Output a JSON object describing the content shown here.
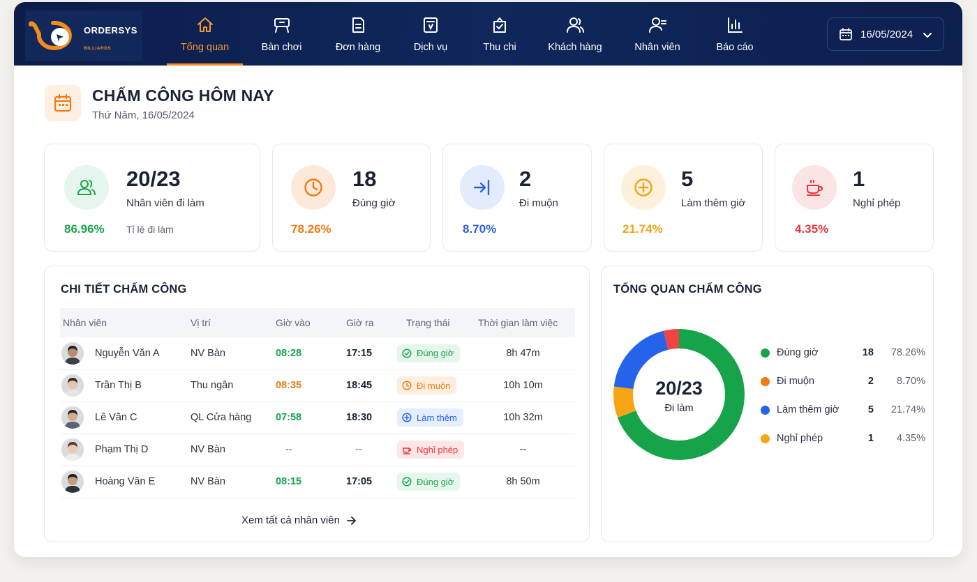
{
  "brand": {
    "name": "ORDERSYS",
    "sub": "BILLIARDS"
  },
  "nav": [
    {
      "label": "Tổng quan",
      "icon": "home-icon",
      "active": true
    },
    {
      "label": "Bàn chơi",
      "icon": "billiard-table-icon"
    },
    {
      "label": "Đơn hàng",
      "icon": "order-icon"
    },
    {
      "label": "Dịch vụ",
      "icon": "service-icon"
    },
    {
      "label": "Thu chi",
      "icon": "finance-icon"
    },
    {
      "label": "Khách hàng",
      "icon": "customers-icon"
    },
    {
      "label": "Nhân viên",
      "icon": "staff-icon"
    },
    {
      "label": "Báo cáo",
      "icon": "report-icon"
    }
  ],
  "date_picker": {
    "value": "16/05/2024"
  },
  "page": {
    "title": "CHẤM CÔNG HÔM NAY",
    "subtitle": "Thứ Năm, 16/05/2024"
  },
  "stats": [
    {
      "value": "20/23",
      "label": "Nhân viên đi làm",
      "percent": "86.96%",
      "note": "Tỉ lệ đi làm",
      "color": "#16a34a",
      "bg": "#e7f6ec"
    },
    {
      "value": "18",
      "label": "Đúng giờ",
      "percent": "78.26%",
      "color": "#f07a14",
      "bg": "#fde9d9"
    },
    {
      "value": "2",
      "label": "Đi muộn",
      "percent": "8.70%",
      "color": "#2e5fd8",
      "bg": "#e3ecfc"
    },
    {
      "value": "5",
      "label": "Làm thêm giờ",
      "percent": "21.74%",
      "color": "#f0a316",
      "bg": "#fdf1dc"
    },
    {
      "value": "1",
      "label": "Nghỉ phép",
      "percent": "4.35%",
      "color": "#e5383b",
      "bg": "#fde4e4"
    }
  ],
  "detail": {
    "title": "CHI TIẾT CHẤM CÔNG",
    "columns": [
      "Nhân viên",
      "Vị trí",
      "Giờ vào",
      "Giờ ra",
      "Trạng thái",
      "Thời gian làm việc"
    ],
    "rows": [
      {
        "name": "Nguyễn Văn A",
        "position": "NV Bàn",
        "in": "08:28",
        "out": "17:15",
        "status": "Đúng giờ",
        "duration": "8h 47m",
        "in_color": "#16a34a",
        "status_type": "ontime"
      },
      {
        "name": "Trần Thị B",
        "position": "Thu ngân",
        "in": "08:35",
        "out": "18:45",
        "status": "Đi muộn",
        "duration": "10h 10m",
        "in_color": "#f07a14",
        "status_type": "late"
      },
      {
        "name": "Lê Văn C",
        "position": "QL Cửa hàng",
        "in": "07:58",
        "out": "18:30",
        "status": "Làm thêm",
        "duration": "10h 32m",
        "in_color": "#16a34a",
        "status_type": "overtime"
      },
      {
        "name": "Phạm Thị D",
        "position": "NV Bàn",
        "in": "--",
        "out": "--",
        "status": "Nghỉ phép",
        "duration": "--",
        "in_color": "#5d6473",
        "status_type": "leave"
      },
      {
        "name": "Hoàng Văn E",
        "position": "NV Bàn",
        "in": "08:15",
        "out": "17:05",
        "status": "Đúng giờ",
        "duration": "8h 50m",
        "in_color": "#16a34a",
        "status_type": "ontime"
      }
    ],
    "view_all": "Xem tất cả nhân viên"
  },
  "overview": {
    "title": "TỔNG QUAN CHẤM CÔNG",
    "center_value": "20/23",
    "center_label": "Đi làm",
    "legend": [
      {
        "name": "Đúng giờ",
        "count": "18",
        "percent": "78.26%",
        "color": "#16a34a"
      },
      {
        "name": "Đi muộn",
        "count": "2",
        "percent": "8.70%",
        "color": "#f07a14"
      },
      {
        "name": "Làm thêm giờ",
        "count": "5",
        "percent": "21.74%",
        "color": "#2563eb"
      },
      {
        "name": "Nghỉ phép",
        "count": "1",
        "percent": "4.35%",
        "color": "#f5a516"
      }
    ],
    "donut": [
      {
        "name": "Đúng giờ",
        "value": 18,
        "color": "#16a34a"
      },
      {
        "name": "Đi muộn",
        "value": 2,
        "color": "#f5a516"
      },
      {
        "name": "Làm thêm giờ",
        "value": 5,
        "color": "#2563eb"
      },
      {
        "name": "Nghỉ phép",
        "value": 1,
        "color": "#ef4444"
      }
    ]
  }
}
